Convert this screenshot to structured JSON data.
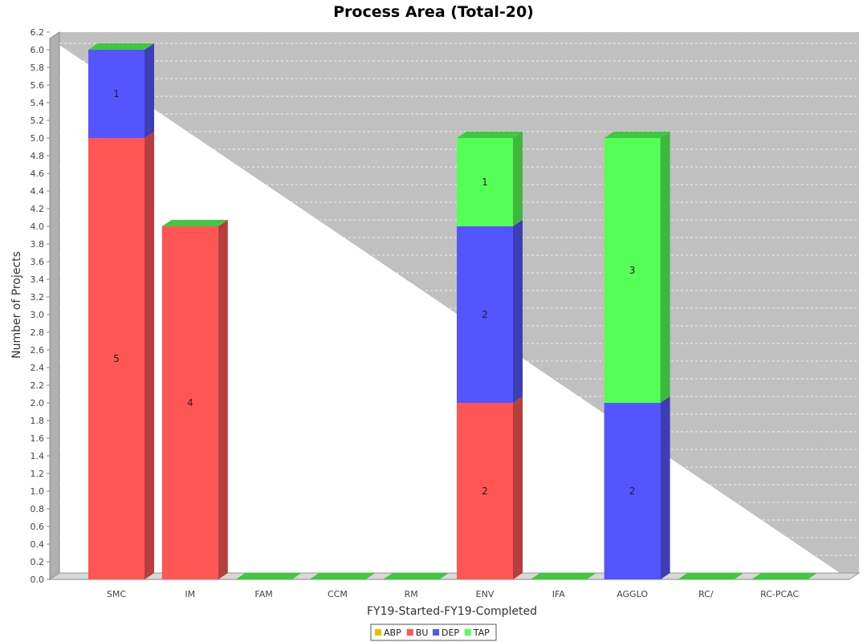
{
  "chart_data": {
    "type": "bar",
    "stacked": true,
    "three_d": true,
    "title": "Process Area (Total-20)",
    "xlabel": "FY19-Started-FY19-Completed",
    "ylabel": "Number of Projects",
    "ylim": [
      0,
      6.2
    ],
    "ytick_step": 0.2,
    "grid": true,
    "legend_position": "bottom-center",
    "categories": [
      "SMC",
      "IM",
      "FAM",
      "CCM",
      "RM",
      "ENV",
      "IFA",
      "AGGLO",
      "RC/",
      "RC-PCAC"
    ],
    "series": [
      {
        "name": "ABP",
        "color": "#e8c000",
        "values": [
          0,
          0,
          0,
          0,
          0,
          0,
          0,
          0,
          0,
          0
        ]
      },
      {
        "name": "BU",
        "color": "#ff5555",
        "values": [
          5,
          4,
          0,
          0,
          0,
          2,
          0,
          0,
          0,
          0
        ]
      },
      {
        "name": "DEP",
        "color": "#5555ff",
        "values": [
          1,
          0,
          0,
          0,
          0,
          2,
          0,
          2,
          0,
          0
        ]
      },
      {
        "name": "TAP",
        "color": "#55ff55",
        "values": [
          0,
          0,
          0,
          0,
          0,
          1,
          0,
          3,
          0,
          0
        ]
      }
    ]
  }
}
